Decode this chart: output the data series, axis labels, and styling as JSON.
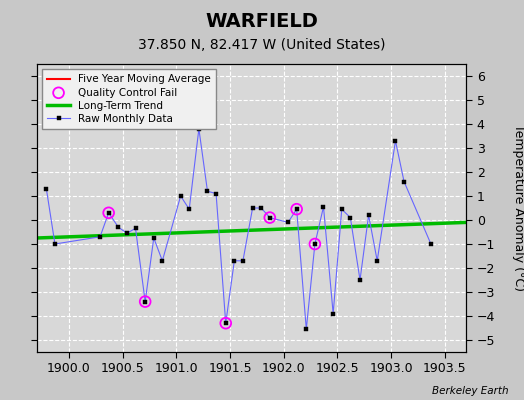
{
  "title": "WARFIELD",
  "subtitle": "37.850 N, 82.417 W (United States)",
  "attribution": "Berkeley Earth",
  "xlim": [
    1899.7,
    1903.7
  ],
  "ylim": [
    -5.5,
    6.5
  ],
  "yticks": [
    -5,
    -4,
    -3,
    -2,
    -1,
    0,
    1,
    2,
    3,
    4,
    5,
    6
  ],
  "xticks": [
    1900,
    1900.5,
    1901,
    1901.5,
    1902,
    1902.5,
    1903,
    1903.5
  ],
  "raw_x": [
    1899.79,
    1899.87,
    1900.29,
    1900.37,
    1900.46,
    1900.54,
    1900.62,
    1900.71,
    1900.79,
    1900.87,
    1901.04,
    1901.12,
    1901.21,
    1901.29,
    1901.37,
    1901.46,
    1901.54,
    1901.62,
    1901.71,
    1901.79,
    1901.87,
    1902.04,
    1902.12,
    1902.21,
    1902.29,
    1902.37,
    1902.46,
    1902.54,
    1902.62,
    1902.71,
    1902.79,
    1902.87,
    1903.04,
    1903.12,
    1903.37
  ],
  "raw_y": [
    1.3,
    -1.0,
    -0.7,
    0.3,
    -0.3,
    -0.55,
    -0.35,
    -3.4,
    -0.75,
    -1.7,
    1.0,
    0.45,
    3.8,
    1.2,
    1.1,
    -4.3,
    -1.7,
    -1.7,
    0.5,
    0.5,
    0.1,
    -0.1,
    0.45,
    -4.55,
    -1.0,
    0.55,
    -3.9,
    0.45,
    0.1,
    -2.5,
    0.2,
    -1.7,
    3.3,
    1.6,
    -1.0
  ],
  "qc_x": [
    1900.71,
    1900.37,
    1901.46,
    1901.87,
    1902.12,
    1902.29
  ],
  "qc_y": [
    -3.4,
    0.3,
    -4.3,
    0.1,
    0.45,
    -1.0
  ],
  "trend_x": [
    1899.7,
    1903.7
  ],
  "trend_y": [
    -0.75,
    -0.1
  ],
  "bg_color": "#c8c8c8",
  "plot_bg_color": "#d8d8d8",
  "raw_line_color": "#6666ff",
  "raw_marker_color": "#000000",
  "qc_color": "#ff00ff",
  "trend_color": "#00bb00",
  "moving_avg_color": "#ff0000",
  "grid_color": "#ffffff",
  "title_fontsize": 14,
  "subtitle_fontsize": 10,
  "tick_fontsize": 9,
  "ylabel_fontsize": 9
}
